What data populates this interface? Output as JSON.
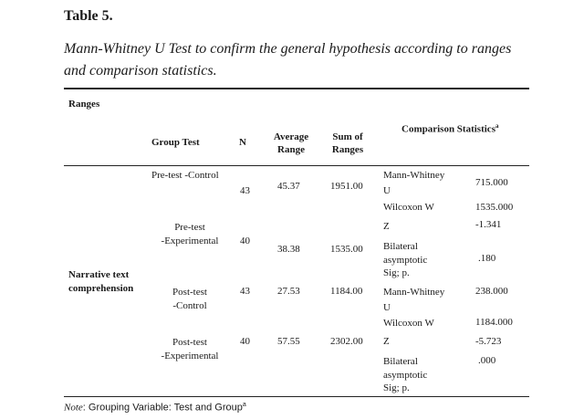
{
  "table": {
    "label": "Table 5.",
    "caption_line1": "Mann-Whitney U Test to confirm the general hypothesis according to ranges",
    "caption_line2": "and comparison statistics.",
    "section_ranges": "Ranges",
    "section_comparison": "Comparison Statistics",
    "section_comparison_sup": "a",
    "headers": {
      "group_test": "Group Test",
      "n": "N",
      "avg_range_1": "Average",
      "avg_range_2": "Range",
      "sum_ranges_1": "Sum of",
      "sum_ranges_2": "Ranges"
    },
    "row_label_1": "Narrative text",
    "row_label_2": "comprehension",
    "groups": [
      {
        "line1": "Pre-test -Control",
        "line2": "",
        "n": "43",
        "avg": "45.37",
        "sum": "1951.00"
      },
      {
        "line1": "Pre-test",
        "line2": "-Experimental",
        "n": "40",
        "avg": "38.38",
        "sum": "1535.00"
      },
      {
        "line1": "Post-test",
        "line2": "-Control",
        "n": "43",
        "avg": "27.53",
        "sum": "1184.00"
      },
      {
        "line1": "Post-test",
        "line2": "-Experimental",
        "n": "40",
        "avg": "57.55",
        "sum": "2302.00"
      }
    ],
    "stats_pre": [
      {
        "l1": "Mann-Whitney",
        "l2": "U",
        "l3": "",
        "value": "715.000"
      },
      {
        "l1": "Wilcoxon W",
        "l2": "",
        "l3": "",
        "value": "1535.000"
      },
      {
        "l1": "Z",
        "l2": "",
        "l3": "",
        "value": "-1.341"
      },
      {
        "l1": "Bilateral",
        "l2": "asymptotic",
        "l3": "Sig; p.",
        "value": ".180"
      }
    ],
    "stats_post": [
      {
        "l1": "Mann-Whitney",
        "l2": "U",
        "l3": "",
        "value": "238.000"
      },
      {
        "l1": "Wilcoxon W",
        "l2": "",
        "l3": "",
        "value": "1184.000"
      },
      {
        "l1": "Z",
        "l2": "",
        "l3": "",
        "value": "-5.723"
      },
      {
        "l1": "Bilateral",
        "l2": "asymptotic",
        "l3": "Sig; p.",
        "value": ".000"
      }
    ],
    "note_label": "Note",
    "note_text": ": Grouping Variable: Test and Group",
    "note_sup": "a"
  }
}
